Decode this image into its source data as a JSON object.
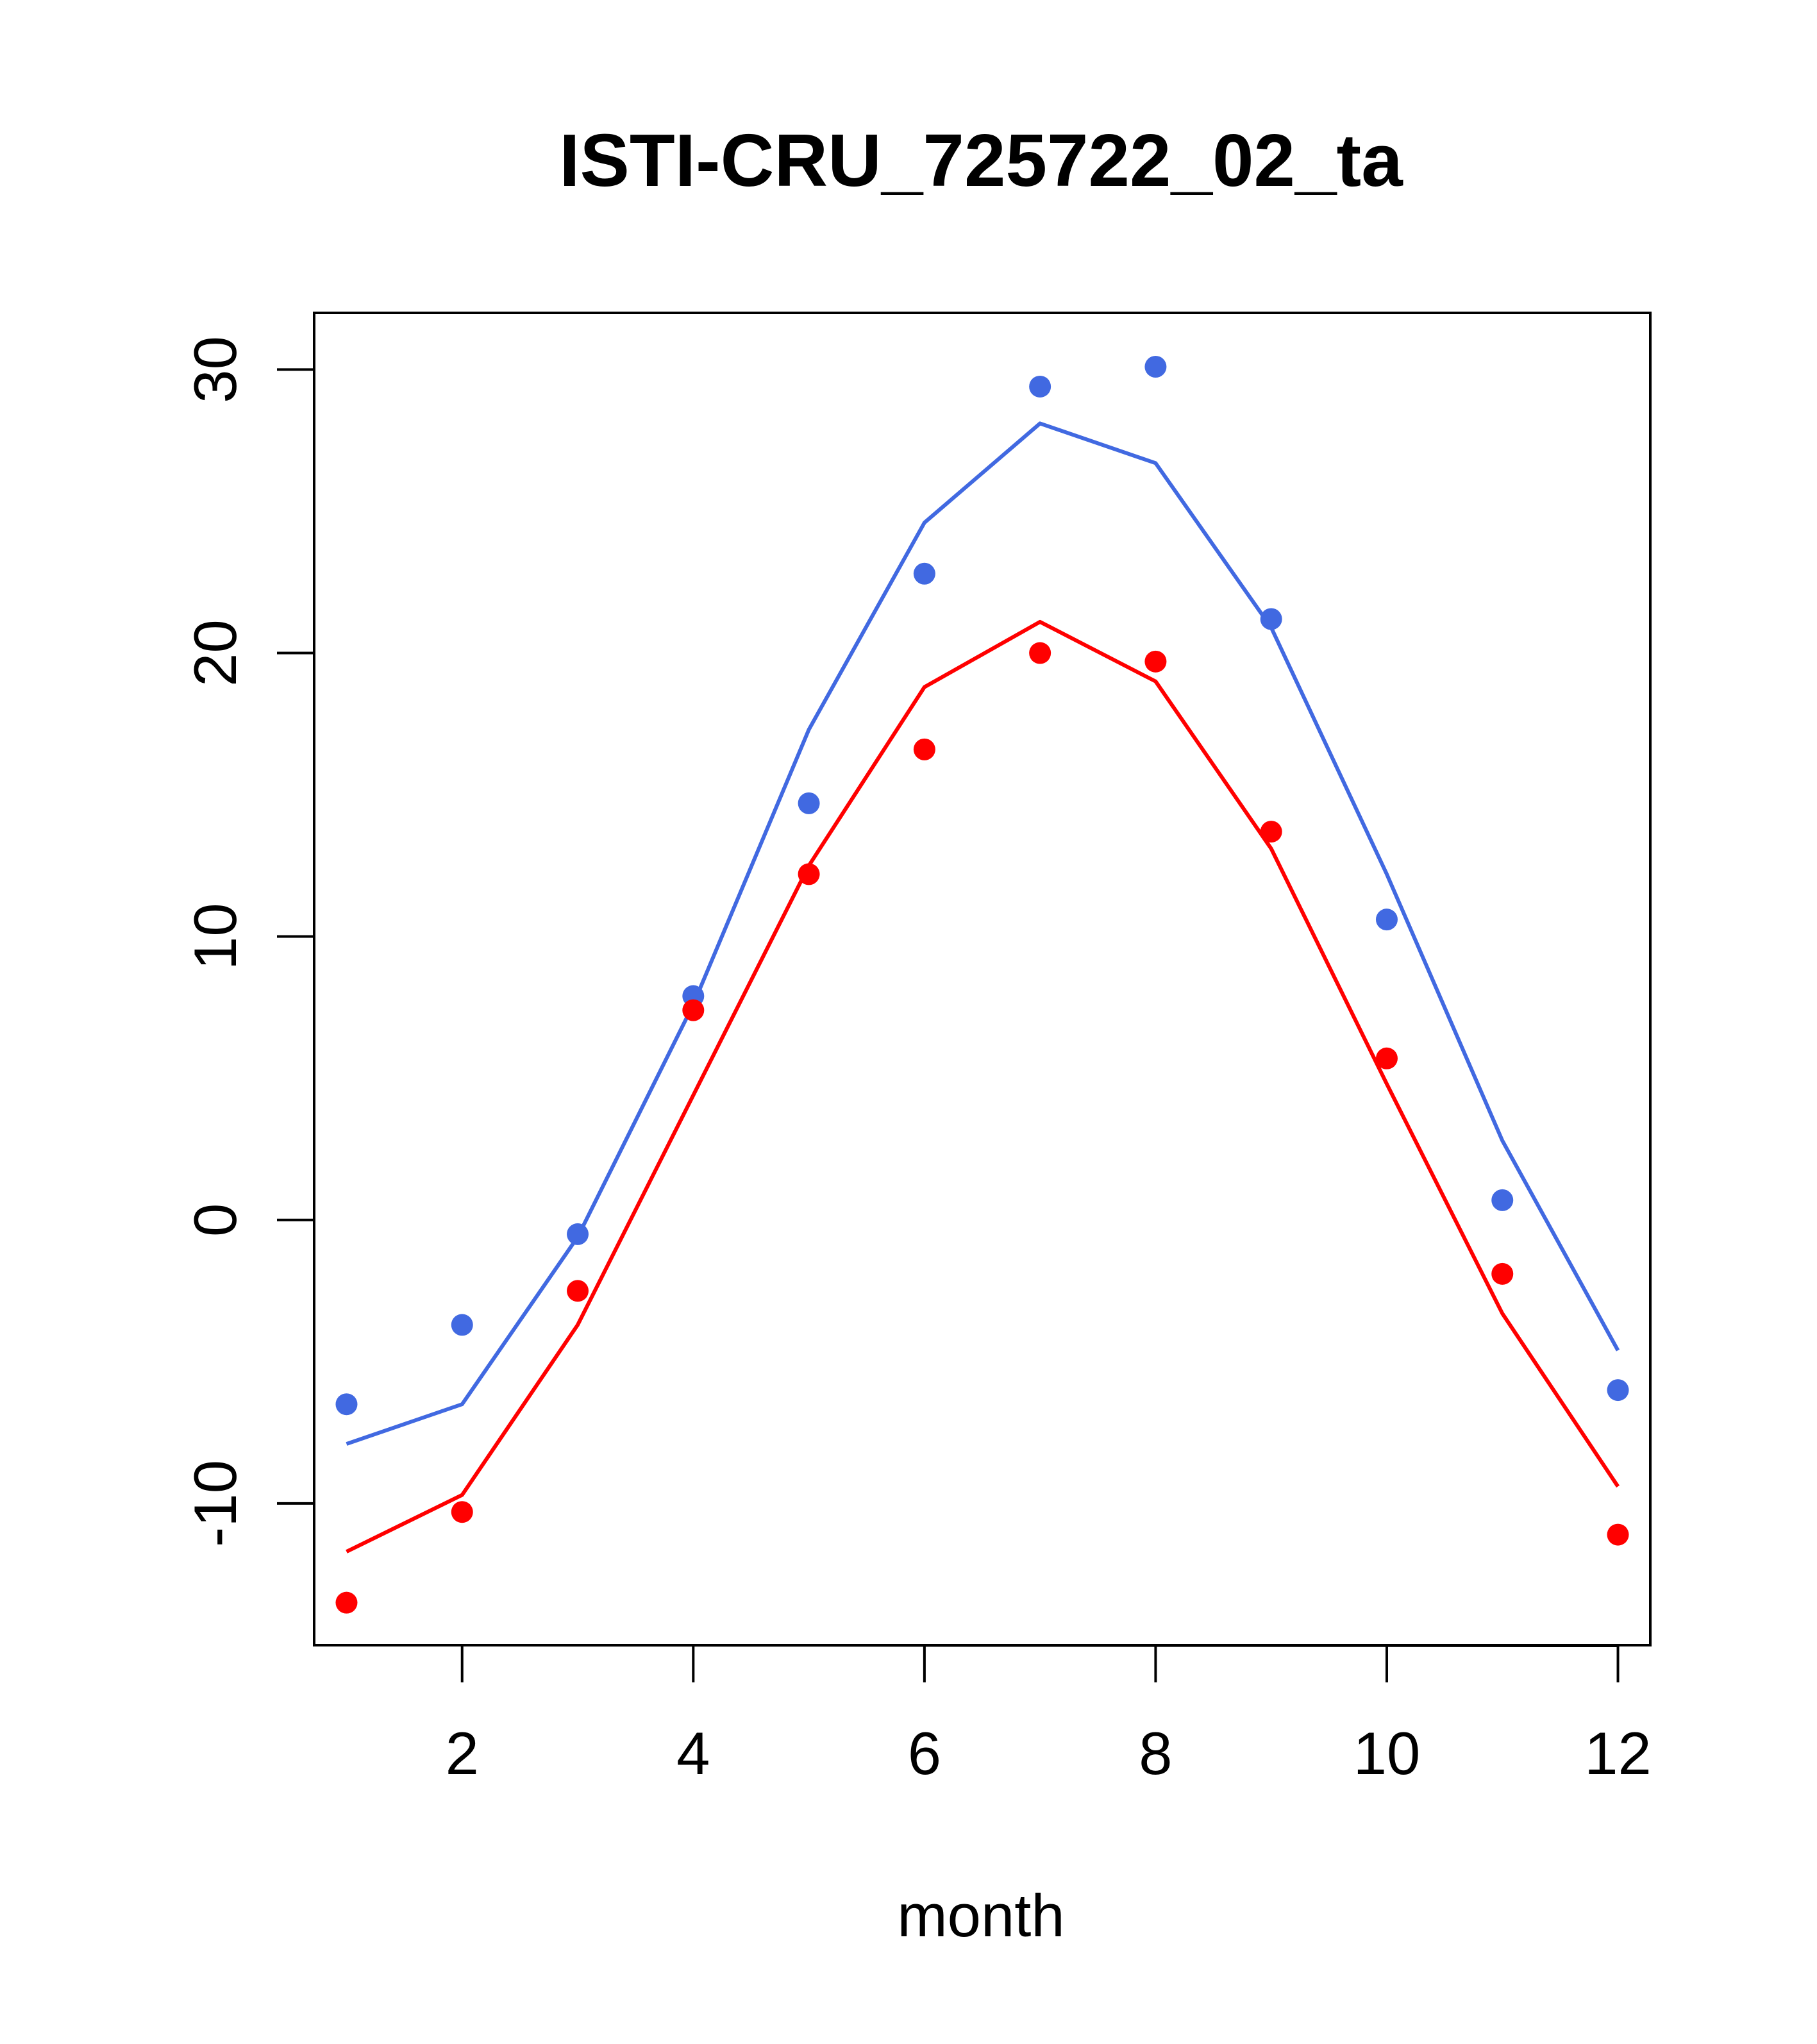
{
  "chart_data": {
    "type": "line",
    "title": "ISTI-CRU_725722_02_ta",
    "xlabel": "month",
    "ylabel": "",
    "xlim": [
      0.72,
      12.28
    ],
    "ylim": [
      -15,
      32
    ],
    "xticks": [
      2,
      4,
      6,
      8,
      10,
      12
    ],
    "yticks": [
      -10,
      0,
      10,
      20,
      30
    ],
    "grid": false,
    "x": [
      1,
      2,
      3,
      4,
      5,
      6,
      7,
      8,
      9,
      10,
      11,
      12
    ],
    "series": [
      {
        "color": "#4169E1",
        "line": [
          -7.9,
          -6.5,
          -0.6,
          7.6,
          17.3,
          24.6,
          28.1,
          26.7,
          20.9,
          12.2,
          2.8,
          -4.6
        ],
        "points": [
          -6.5,
          -3.7,
          -0.5,
          7.9,
          14.7,
          22.8,
          29.4,
          30.1,
          21.2,
          10.6,
          0.7,
          -6.0
        ]
      },
      {
        "color": "#FF0000",
        "line": [
          -11.7,
          -9.7,
          -3.7,
          4.4,
          12.5,
          18.8,
          21.1,
          19.0,
          13.1,
          4.8,
          -3.3,
          -9.4
        ],
        "points": [
          -13.5,
          -10.3,
          -2.5,
          7.4,
          12.2,
          16.6,
          20.0,
          19.7,
          13.7,
          5.7,
          -1.9,
          -11.1
        ]
      }
    ]
  }
}
